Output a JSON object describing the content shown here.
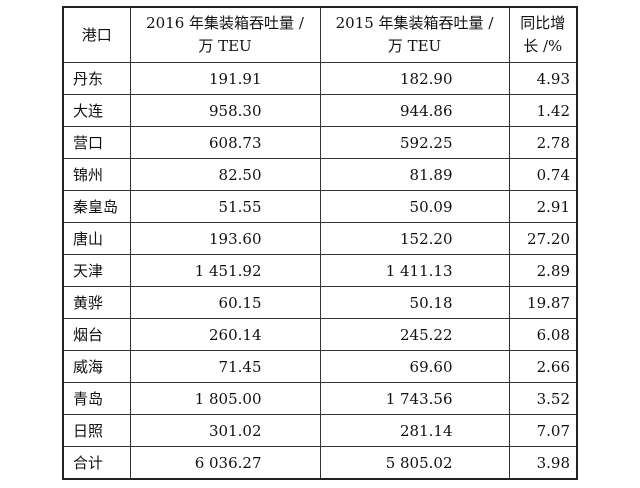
{
  "table": {
    "headers": {
      "port": "港口",
      "y2016": [
        "2016 年集装箱吞吐量 /",
        "万 TEU"
      ],
      "y2015": [
        "2015 年集装箱吞吐量 /",
        "万 TEU"
      ],
      "growth": [
        "同比增",
        "长 /%"
      ]
    },
    "rows": [
      {
        "port": "丹东",
        "y2016": "191.91",
        "y2015": "182.90",
        "growth": "4.93"
      },
      {
        "port": "大连",
        "y2016": "958.30",
        "y2015": "944.86",
        "growth": "1.42"
      },
      {
        "port": "营口",
        "y2016": "608.73",
        "y2015": "592.25",
        "growth": "2.78"
      },
      {
        "port": "锦州",
        "y2016": "82.50",
        "y2015": "81.89",
        "growth": "0.74"
      },
      {
        "port": "秦皇岛",
        "y2016": "51.55",
        "y2015": "50.09",
        "growth": "2.91"
      },
      {
        "port": "唐山",
        "y2016": "193.60",
        "y2015": "152.20",
        "growth": "27.20"
      },
      {
        "port": "天津",
        "y2016": "1 451.92",
        "y2015": "1 411.13",
        "growth": "2.89"
      },
      {
        "port": "黄骅",
        "y2016": "60.15",
        "y2015": "50.18",
        "growth": "19.87"
      },
      {
        "port": "烟台",
        "y2016": "260.14",
        "y2015": "245.22",
        "growth": "6.08"
      },
      {
        "port": "威海",
        "y2016": "71.45",
        "y2015": "69.60",
        "growth": "2.66"
      },
      {
        "port": "青岛",
        "y2016": "1 805.00",
        "y2015": "1 743.56",
        "growth": "3.52"
      },
      {
        "port": "日照",
        "y2016": "301.02",
        "y2015": "281.14",
        "growth": "7.07"
      },
      {
        "port": "合计",
        "y2016": "6 036.27",
        "y2015": "5 805.02",
        "growth": "3.98"
      }
    ]
  }
}
